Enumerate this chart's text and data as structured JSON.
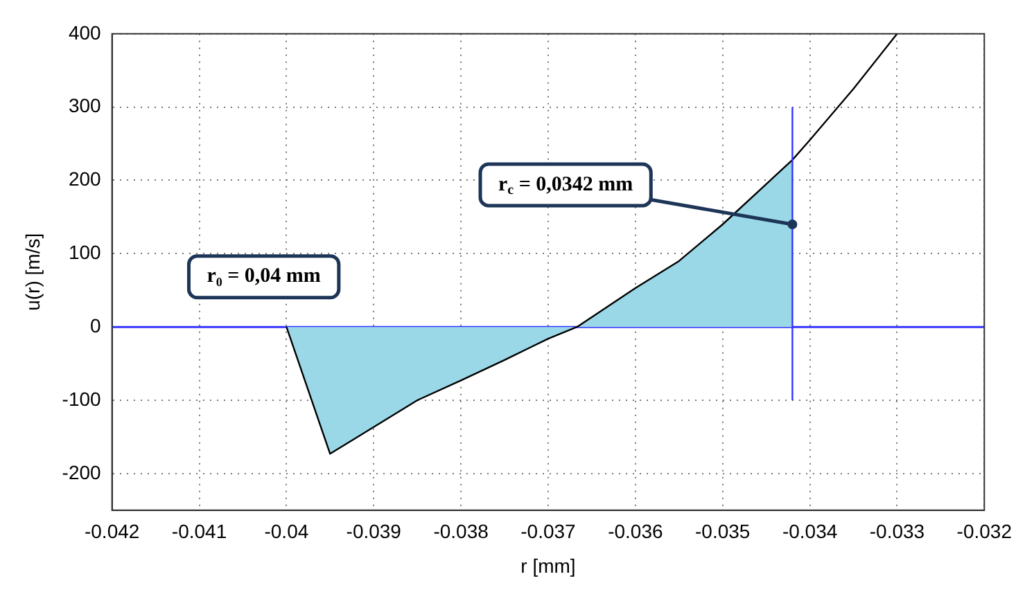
{
  "chart_data": {
    "type": "line",
    "xlabel": "r [mm]",
    "ylabel": "u(r) [m/s]",
    "xlim": [
      -0.042,
      -0.032
    ],
    "xticks": [
      -0.042,
      -0.041,
      -0.04,
      -0.039,
      -0.038,
      -0.037,
      -0.036,
      -0.035,
      -0.034,
      -0.033,
      -0.032
    ],
    "ylim": [
      -250,
      400
    ],
    "yticks": [
      -200,
      -100,
      0,
      100,
      200,
      300,
      400
    ],
    "grid": true,
    "marker": "none",
    "line_style": "solid",
    "series": [
      {
        "type": "area",
        "color": "#9ad8e8",
        "x": [
          -0.04,
          -0.0395,
          -0.0385,
          -0.038,
          -0.0375,
          -0.037,
          -0.03667,
          -0.036,
          -0.0355,
          -0.035,
          -0.0345,
          -0.0342
        ],
        "values": [
          0,
          -173,
          -100,
          -73,
          -45,
          -16,
          0,
          53,
          90,
          140,
          195,
          228
        ]
      },
      {
        "type": "line",
        "color": "#000000",
        "x": [
          -0.04,
          -0.0395,
          -0.0385,
          -0.038,
          -0.0375,
          -0.037,
          -0.03667,
          -0.036,
          -0.0355,
          -0.035,
          -0.0345,
          -0.0342,
          -0.034,
          -0.0335,
          -0.033
        ],
        "values": [
          0,
          -173,
          -100,
          -73,
          -45,
          -16,
          0,
          53,
          90,
          140,
          195,
          228,
          255,
          325,
          400
        ]
      },
      {
        "type": "line",
        "color": "#3333ff",
        "x": [
          -0.0342,
          -0.0342
        ],
        "values": [
          -100,
          300
        ]
      }
    ],
    "ref_lines": [
      {
        "axis": "y",
        "value": 0,
        "color": "#3333ff"
      }
    ],
    "annotations": [
      "r₀ = 0,04 mm",
      {
        "text": "r$_{c}$ = 0,0342 mm",
        "x": -0.0342,
        "y": 140
      }
    ]
  }
}
